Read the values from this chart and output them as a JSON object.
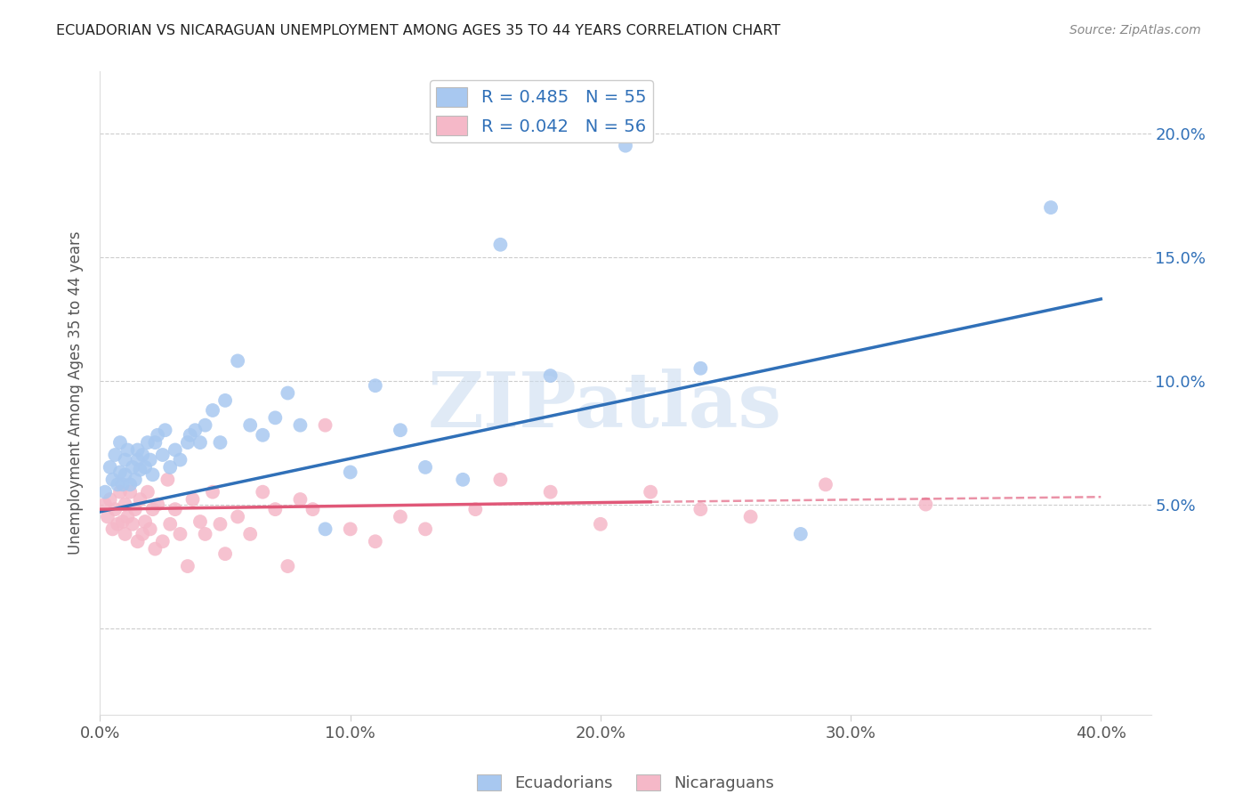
{
  "title": "ECUADORIAN VS NICARAGUAN UNEMPLOYMENT AMONG AGES 35 TO 44 YEARS CORRELATION CHART",
  "source": "Source: ZipAtlas.com",
  "ylabel": "Unemployment Among Ages 35 to 44 years",
  "xlabel_ticks": [
    "0.0%",
    "10.0%",
    "20.0%",
    "30.0%",
    "40.0%"
  ],
  "ylabel_ticks_right": [
    "5.0%",
    "10.0%",
    "15.0%",
    "20.0%"
  ],
  "xlim": [
    0.0,
    0.42
  ],
  "ylim": [
    -0.035,
    0.225
  ],
  "ytick_vals": [
    0.0,
    0.05,
    0.1,
    0.15,
    0.2
  ],
  "xtick_vals": [
    0.0,
    0.1,
    0.2,
    0.3,
    0.4
  ],
  "legend_blue_label": "R = 0.485   N = 55",
  "legend_pink_label": "R = 0.042   N = 56",
  "legend_bottom_blue": "Ecuadorians",
  "legend_bottom_pink": "Nicaraguans",
  "watermark": "ZIPatlas",
  "blue_color": "#a8c8f0",
  "pink_color": "#f5b8c8",
  "blue_line_color": "#3070b8",
  "pink_line_color": "#e05878",
  "ecuadorians_x": [
    0.002,
    0.004,
    0.005,
    0.006,
    0.007,
    0.008,
    0.008,
    0.009,
    0.01,
    0.01,
    0.011,
    0.012,
    0.013,
    0.014,
    0.015,
    0.015,
    0.016,
    0.017,
    0.018,
    0.019,
    0.02,
    0.021,
    0.022,
    0.023,
    0.025,
    0.026,
    0.028,
    0.03,
    0.032,
    0.035,
    0.036,
    0.038,
    0.04,
    0.042,
    0.045,
    0.048,
    0.05,
    0.055,
    0.06,
    0.065,
    0.07,
    0.075,
    0.08,
    0.09,
    0.1,
    0.11,
    0.12,
    0.13,
    0.145,
    0.16,
    0.18,
    0.21,
    0.24,
    0.28,
    0.38
  ],
  "ecuadorians_y": [
    0.055,
    0.065,
    0.06,
    0.07,
    0.058,
    0.063,
    0.075,
    0.058,
    0.068,
    0.062,
    0.072,
    0.058,
    0.065,
    0.06,
    0.072,
    0.068,
    0.064,
    0.07,
    0.065,
    0.075,
    0.068,
    0.062,
    0.075,
    0.078,
    0.07,
    0.08,
    0.065,
    0.072,
    0.068,
    0.075,
    0.078,
    0.08,
    0.075,
    0.082,
    0.088,
    0.075,
    0.092,
    0.108,
    0.082,
    0.078,
    0.085,
    0.095,
    0.082,
    0.04,
    0.063,
    0.098,
    0.08,
    0.065,
    0.06,
    0.155,
    0.102,
    0.195,
    0.105,
    0.038,
    0.17
  ],
  "nicaraguans_x": [
    0.002,
    0.003,
    0.004,
    0.005,
    0.006,
    0.007,
    0.008,
    0.009,
    0.01,
    0.01,
    0.011,
    0.012,
    0.013,
    0.014,
    0.015,
    0.016,
    0.017,
    0.018,
    0.019,
    0.02,
    0.021,
    0.022,
    0.023,
    0.025,
    0.027,
    0.028,
    0.03,
    0.032,
    0.035,
    0.037,
    0.04,
    0.042,
    0.045,
    0.048,
    0.05,
    0.055,
    0.06,
    0.065,
    0.07,
    0.075,
    0.08,
    0.085,
    0.09,
    0.1,
    0.11,
    0.12,
    0.13,
    0.15,
    0.16,
    0.18,
    0.2,
    0.22,
    0.24,
    0.26,
    0.29,
    0.33
  ],
  "nicaraguans_y": [
    0.05,
    0.045,
    0.052,
    0.04,
    0.048,
    0.042,
    0.055,
    0.043,
    0.05,
    0.038,
    0.045,
    0.055,
    0.042,
    0.048,
    0.035,
    0.052,
    0.038,
    0.043,
    0.055,
    0.04,
    0.048,
    0.032,
    0.05,
    0.035,
    0.06,
    0.042,
    0.048,
    0.038,
    0.025,
    0.052,
    0.043,
    0.038,
    0.055,
    0.042,
    0.03,
    0.045,
    0.038,
    0.055,
    0.048,
    0.025,
    0.052,
    0.048,
    0.082,
    0.04,
    0.035,
    0.045,
    0.04,
    0.048,
    0.06,
    0.055,
    0.042,
    0.055,
    0.048,
    0.045,
    0.058,
    0.05
  ],
  "blue_line_x0": 0.0,
  "blue_line_y0": 0.047,
  "blue_line_x1": 0.4,
  "blue_line_y1": 0.133,
  "pink_line_x0": 0.0,
  "pink_line_y0": 0.048,
  "pink_line_solid_end_x": 0.22,
  "pink_line_solid_end_y": 0.051,
  "pink_line_x1": 0.4,
  "pink_line_y1": 0.053
}
